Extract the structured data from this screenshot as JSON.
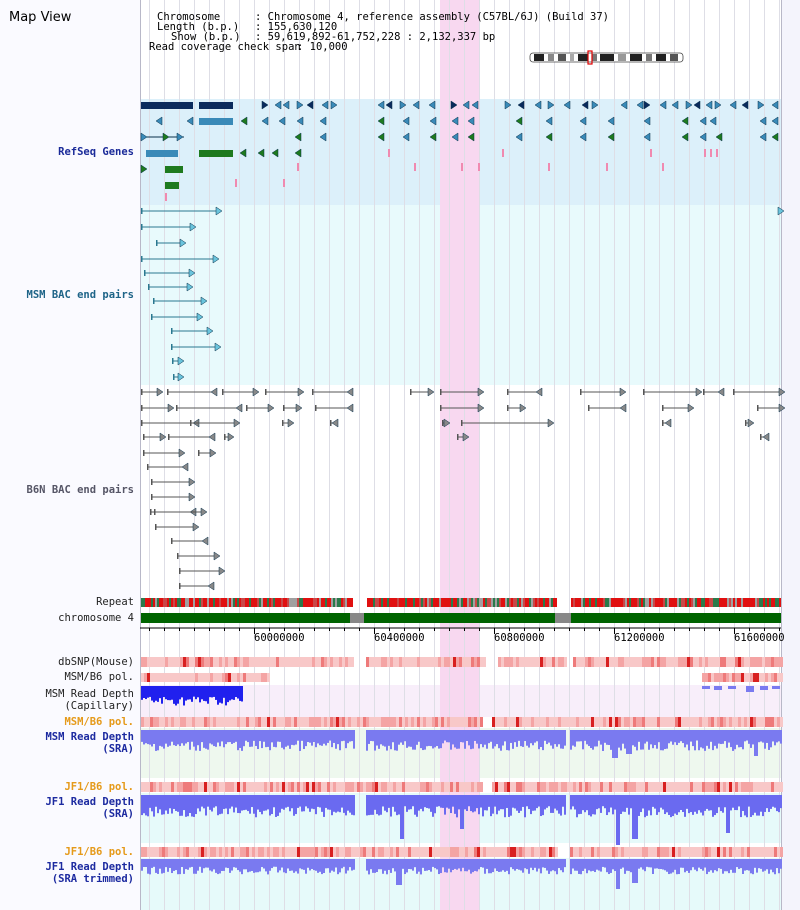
{
  "view_title": "Map View",
  "info": {
    "chromosome_key": "Chromosome",
    "chromosome_value": ": Chromosome 4, reference assembly (C57BL/6J) (Build 37)",
    "length_key": "Length (b.p.)",
    "length_value": ": 155,630,120",
    "show_key": "Show (b.p.)",
    "show_value": ": 59,619,892-61,752,228 : 2,132,337 bp",
    "coverage_key": "Read coverage check span",
    "coverage_value": ": 10,000"
  },
  "tracks": {
    "refseq": "RefSeq Genes",
    "msm_bac": "MSM BAC end pairs",
    "b6n_bac": "B6N BAC end pairs",
    "repeat": "Repeat",
    "chromosome": "chromosome 4",
    "dbsnp": "dbSNP(Mouse)",
    "msm_b6_pol_1": "MSM/B6 pol.",
    "msm_depth_cap_1": "MSM Read Depth",
    "msm_depth_cap_2": "(Capillary)",
    "msm_b6_pol_2": "MSM/B6 pol.",
    "msm_depth_sra_1": "MSM Read Depth",
    "msm_depth_sra_2": "(SRA)",
    "jf1_b6_pol_1": "JF1/B6 pol.",
    "jf1_depth_sra_1": "JF1 Read Depth",
    "jf1_depth_sra_2": "(SRA)",
    "jf1_b6_pol_2": "JF1/B6 pol.",
    "jf1_depth_trim_1": "JF1 Read Depth",
    "jf1_depth_trim_2": "(SRA trimmed)"
  },
  "axis": {
    "ticks": [
      "60000000",
      "60400000",
      "60800000",
      "61200000",
      "61600000"
    ]
  },
  "colors": {
    "highlight": "#f8d8f0",
    "refseq_band": "#dcf0fa",
    "msm_bac_band": "#e8fafc",
    "chromosome": "#006400",
    "gene_navy": "#0a2a5c",
    "gene_blue": "#3a8ab8",
    "gene_green": "#1e7a1e"
  }
}
